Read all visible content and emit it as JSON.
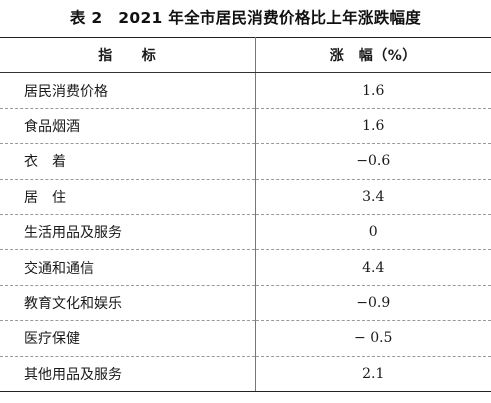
{
  "title": "表 2　2021 年全市居民消费价格比上年涨跌幅度",
  "table": {
    "headers": [
      "指　　标",
      "涨　幅（%）"
    ],
    "rows": [
      {
        "label": "居民消费价格",
        "value": "1.6"
      },
      {
        "label": "食品烟酒",
        "value": "1.6"
      },
      {
        "label": "衣　着",
        "value": "−0.6"
      },
      {
        "label": "居　住",
        "value": "3.4"
      },
      {
        "label": "生活用品及服务",
        "value": "0"
      },
      {
        "label": "交通和通信",
        "value": "4.4"
      },
      {
        "label": "教育文化和娱乐",
        "value": "−0.9"
      },
      {
        "label": "医疗保健",
        "value": "− 0.5"
      },
      {
        "label": "其他用品及服务",
        "value": "2.1"
      }
    ]
  }
}
